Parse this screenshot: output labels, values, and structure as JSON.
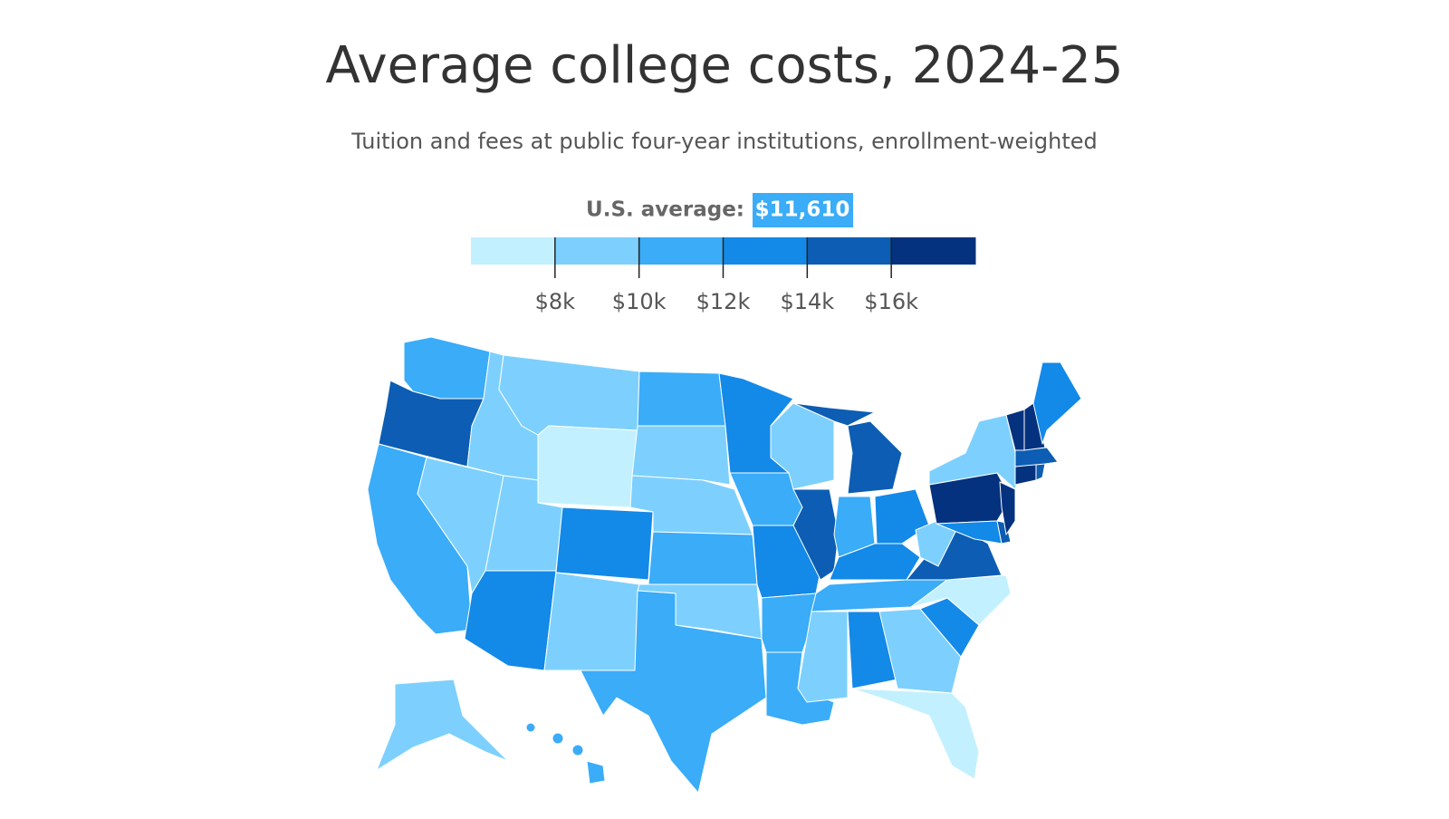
{
  "title": "Average college costs, 2024-25",
  "subtitle": "Tuition and fees at public four-year institutions, enrollment-weighted",
  "legend": {
    "label": "U.S. average:",
    "average": "$11,610",
    "range": [
      6000,
      18000
    ],
    "ticks": [
      {
        "value": 8000,
        "label": "$8k"
      },
      {
        "value": 10000,
        "label": "$10k"
      },
      {
        "value": 12000,
        "label": "$12k"
      },
      {
        "value": 14000,
        "label": "$14k"
      },
      {
        "value": 16000,
        "label": "$16k"
      }
    ],
    "colors": [
      "#c2f0ff",
      "#7dd0fd",
      "#3aacf8",
      "#1389e8",
      "#0c5db3",
      "#04327e"
    ]
  }
}
